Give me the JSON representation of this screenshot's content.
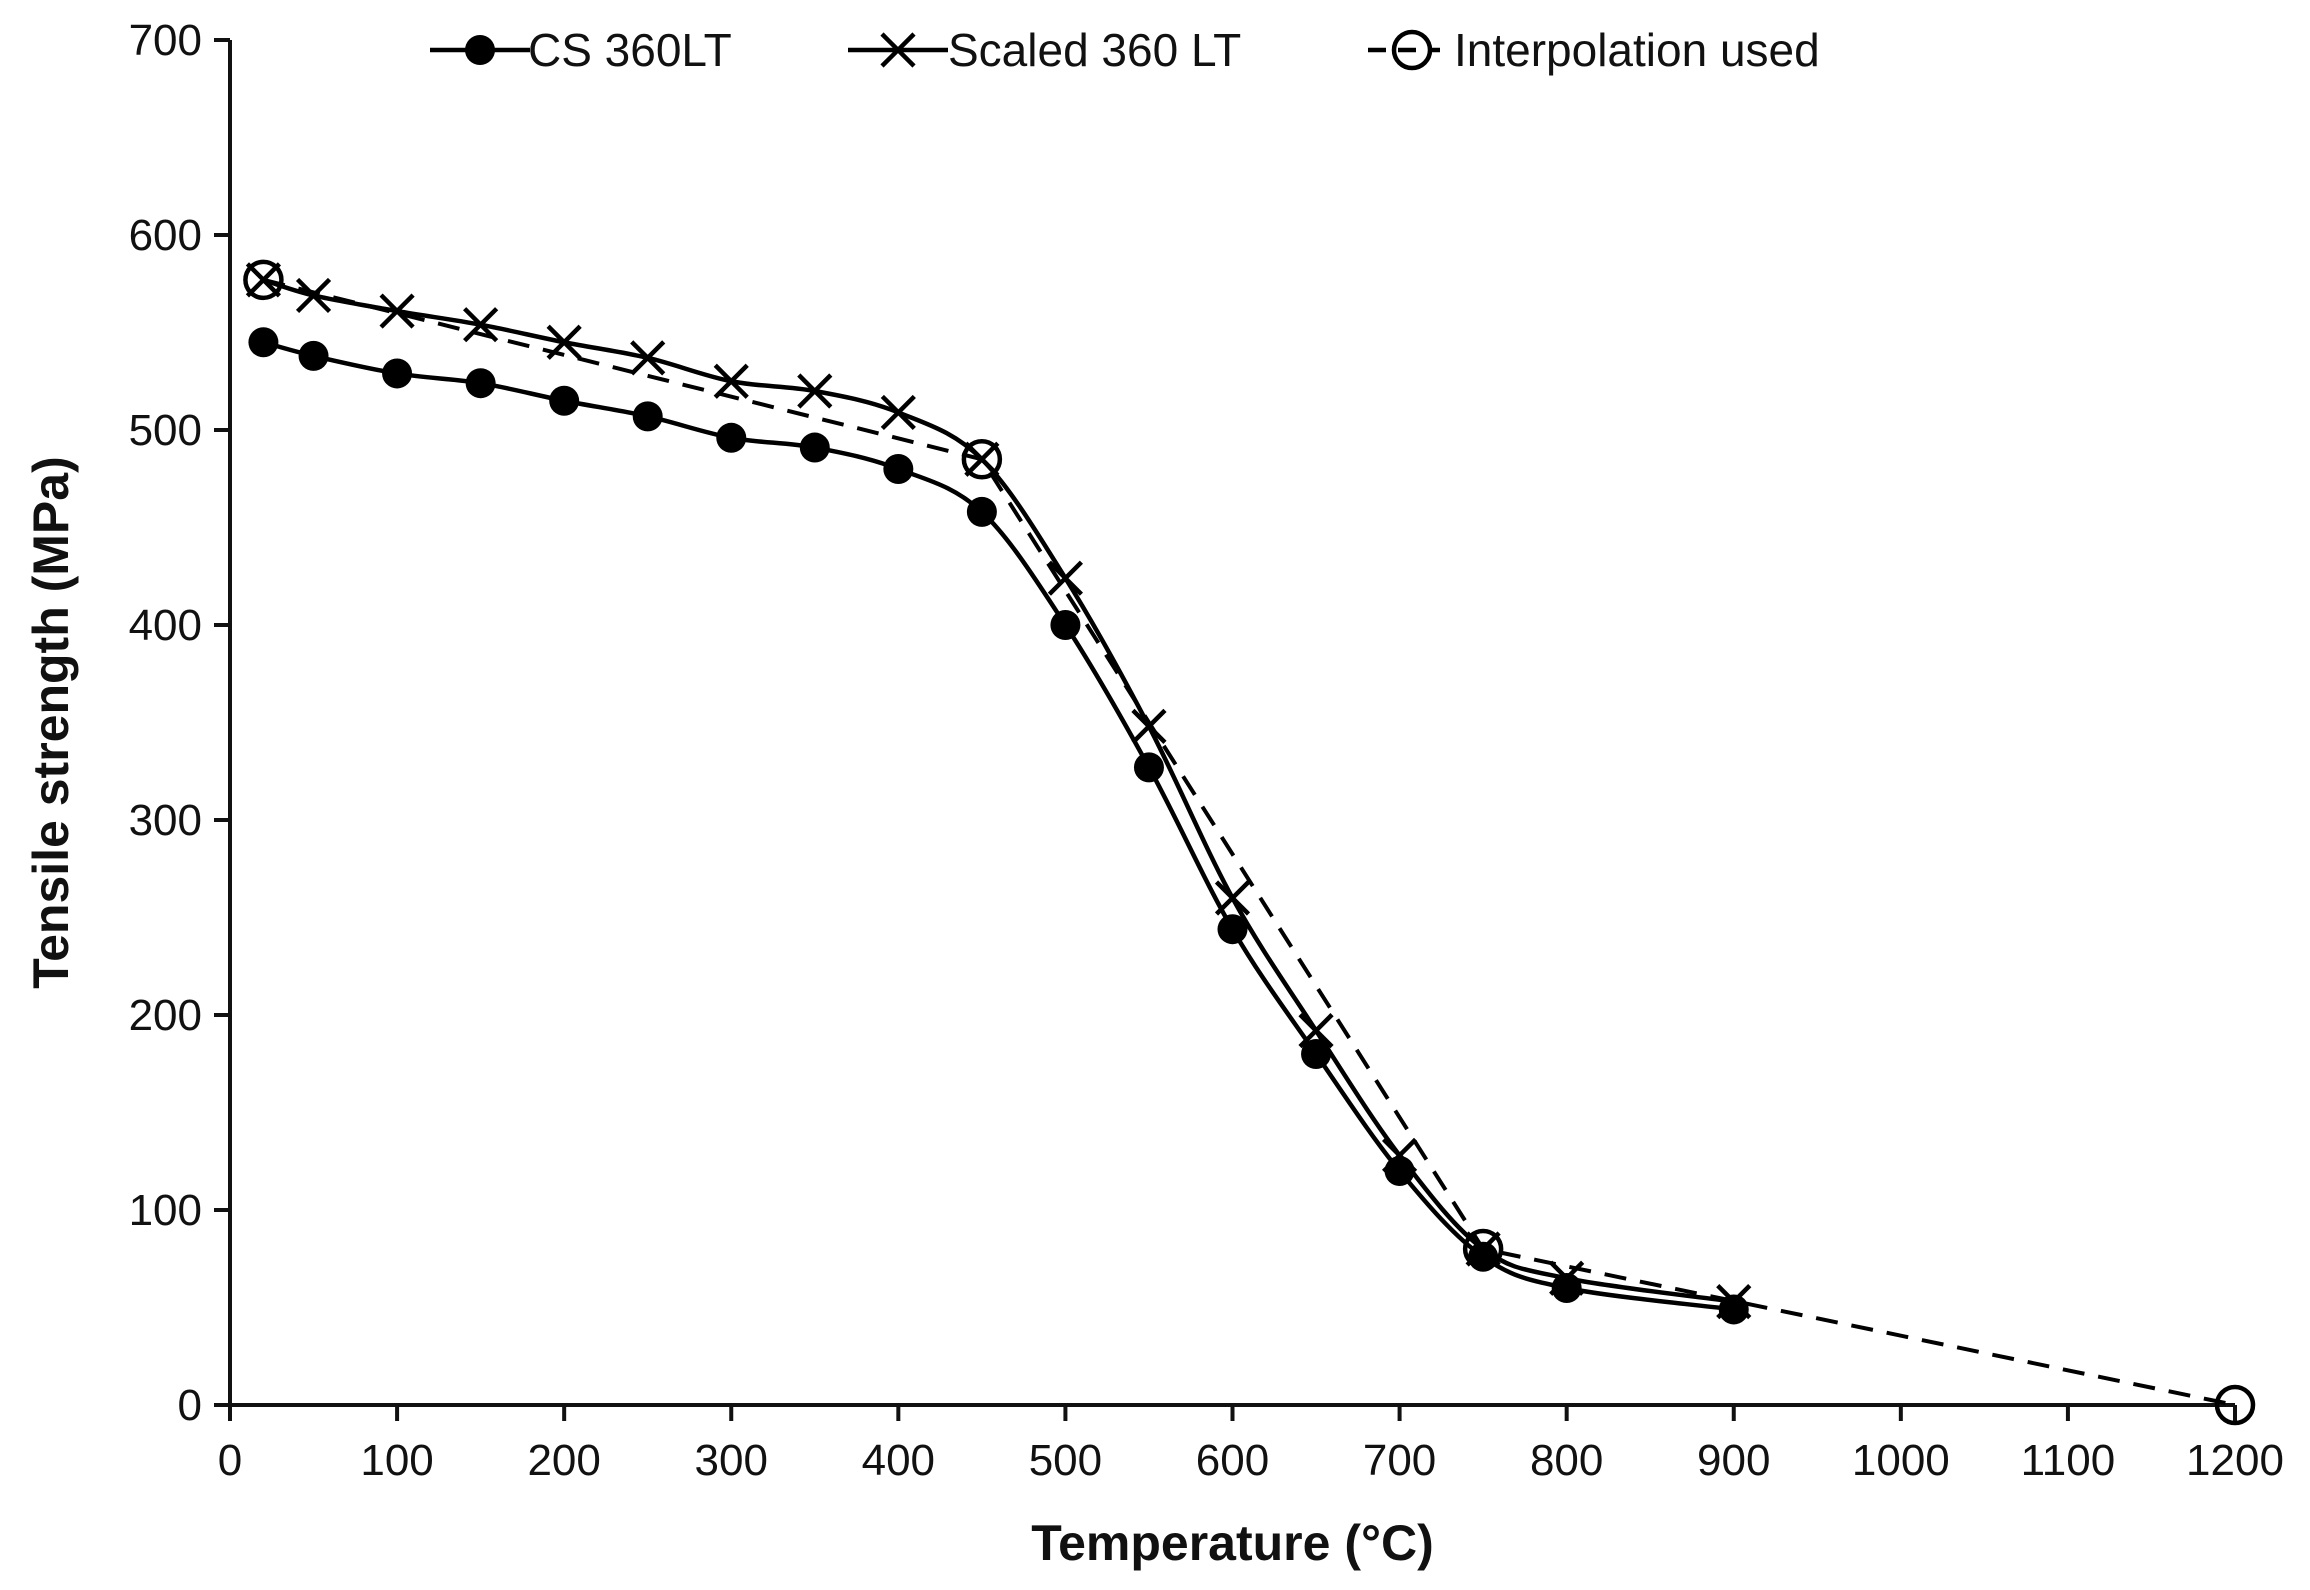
{
  "chart_data": {
    "type": "line",
    "title": "",
    "xlabel": "Temperature (°C)",
    "ylabel": "Tensile strength (MPa)",
    "xlim": [
      0,
      1200
    ],
    "ylim": [
      0,
      700
    ],
    "xticks": [
      0,
      100,
      200,
      300,
      400,
      500,
      600,
      700,
      800,
      900,
      1000,
      1100,
      1200
    ],
    "yticks": [
      0,
      100,
      200,
      300,
      400,
      500,
      600,
      700
    ],
    "xtick_labels": [
      "0",
      "100",
      "200",
      "300",
      "400",
      "500",
      "600",
      "700",
      "800",
      "900",
      "1000",
      "1100",
      "1200"
    ],
    "ytick_labels": [
      "0",
      "100",
      "200",
      "300",
      "400",
      "500",
      "600",
      "700"
    ],
    "grid": false,
    "legend_position": "top",
    "series": [
      {
        "name": "CS 360LT",
        "marker": "filled-circle",
        "line": "solid",
        "color": "#000000",
        "x": [
          20,
          50,
          100,
          150,
          200,
          250,
          300,
          350,
          400,
          450,
          500,
          550,
          600,
          650,
          700,
          750,
          800,
          900
        ],
        "y": [
          545,
          538,
          529,
          524,
          515,
          507,
          496,
          491,
          480,
          458,
          400,
          327,
          244,
          180,
          120,
          76,
          60,
          49
        ]
      },
      {
        "name": "Scaled 360 LT",
        "marker": "x",
        "line": "solid",
        "color": "#000000",
        "x": [
          20,
          50,
          100,
          150,
          200,
          250,
          300,
          350,
          400,
          450,
          500,
          550,
          600,
          650,
          700,
          750,
          800,
          900
        ],
        "y": [
          577,
          569,
          561,
          554,
          545,
          537,
          525,
          520,
          509,
          485,
          424,
          348,
          260,
          192,
          128,
          80,
          65,
          53
        ]
      },
      {
        "name": "Interpolation used",
        "marker": "open-circle",
        "line": "dashed",
        "color": "#000000",
        "x": [
          20,
          450,
          750,
          1200
        ],
        "y": [
          577,
          485,
          80,
          0
        ]
      }
    ]
  }
}
